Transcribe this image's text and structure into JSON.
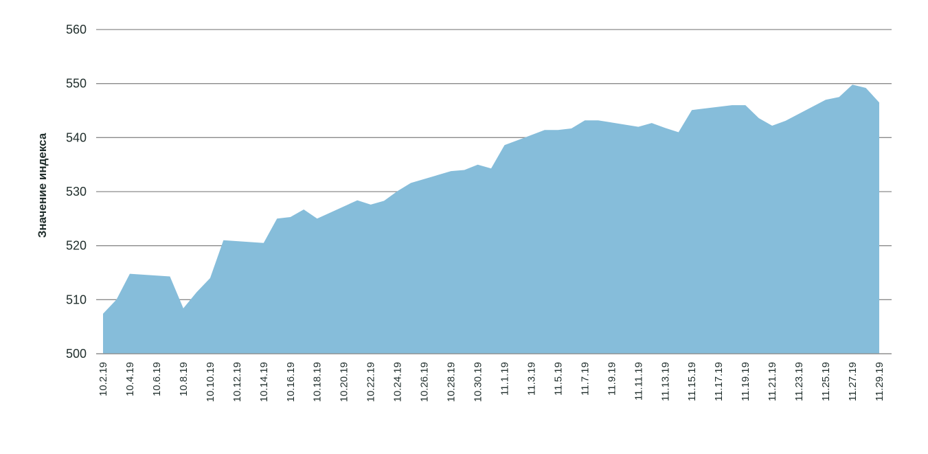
{
  "chart_data": {
    "type": "area",
    "title": "",
    "xlabel": "",
    "ylabel": "Значение индекса",
    "ylim": [
      500,
      560
    ],
    "yticks": [
      "500",
      "510",
      "520",
      "530",
      "540",
      "550",
      "560"
    ],
    "grid": true,
    "legend": "none",
    "colors": {
      "area": "#86bdda",
      "grid": "#8a8a8a",
      "text": "#1f2d2b"
    },
    "xticks": [
      "10.2.19",
      "10.4.19",
      "10.6.19",
      "10.8.19",
      "10.10.19",
      "10.12.19",
      "10.14.19",
      "10.16.19",
      "10.18.19",
      "10.20.19",
      "10.22.19",
      "10.24.19",
      "10.26.19",
      "10.28.19",
      "10.30.19",
      "11.1.19",
      "11.3.19",
      "11.5.19",
      "11.7.19",
      "11.9.19",
      "11.11.19",
      "11.13.19",
      "11.15.19",
      "11.17.19",
      "11.19.19",
      "11.21.19",
      "11.23.19",
      "11.25.19",
      "11.27.19",
      "11.29.19"
    ],
    "x": [
      "10.2.19",
      "10.3.19",
      "10.4.19",
      "10.7.19",
      "10.8.19",
      "10.9.19",
      "10.10.19",
      "10.11.19",
      "10.14.19",
      "10.15.19",
      "10.16.19",
      "10.17.19",
      "10.18.19",
      "10.21.19",
      "10.22.19",
      "10.23.19",
      "10.24.19",
      "10.25.19",
      "10.28.19",
      "10.29.19",
      "10.30.19",
      "10.31.19",
      "11.1.19",
      "11.4.19",
      "11.5.19",
      "11.6.19",
      "11.7.19",
      "11.8.19",
      "11.11.19",
      "11.12.19",
      "11.13.19",
      "11.14.19",
      "11.15.19",
      "11.18.19",
      "11.19.19",
      "11.20.19",
      "11.21.19",
      "11.22.19",
      "11.25.19",
      "11.26.19",
      "11.27.19",
      "11.28.19",
      "11.29.19"
    ],
    "values": [
      507.4,
      510.0,
      514.8,
      514.3,
      508.4,
      511.4,
      514.0,
      521.0,
      520.5,
      525.0,
      525.3,
      526.7,
      525.0,
      528.4,
      527.6,
      528.3,
      530.1,
      531.6,
      533.8,
      534.0,
      535.0,
      534.3,
      538.6,
      541.4,
      541.4,
      541.7,
      543.2,
      543.2,
      542.0,
      542.7,
      541.8,
      541.0,
      545.1,
      546.0,
      546.0,
      543.6,
      542.2,
      543.1,
      547.0,
      547.5,
      549.8,
      549.2,
      546.5
    ]
  }
}
